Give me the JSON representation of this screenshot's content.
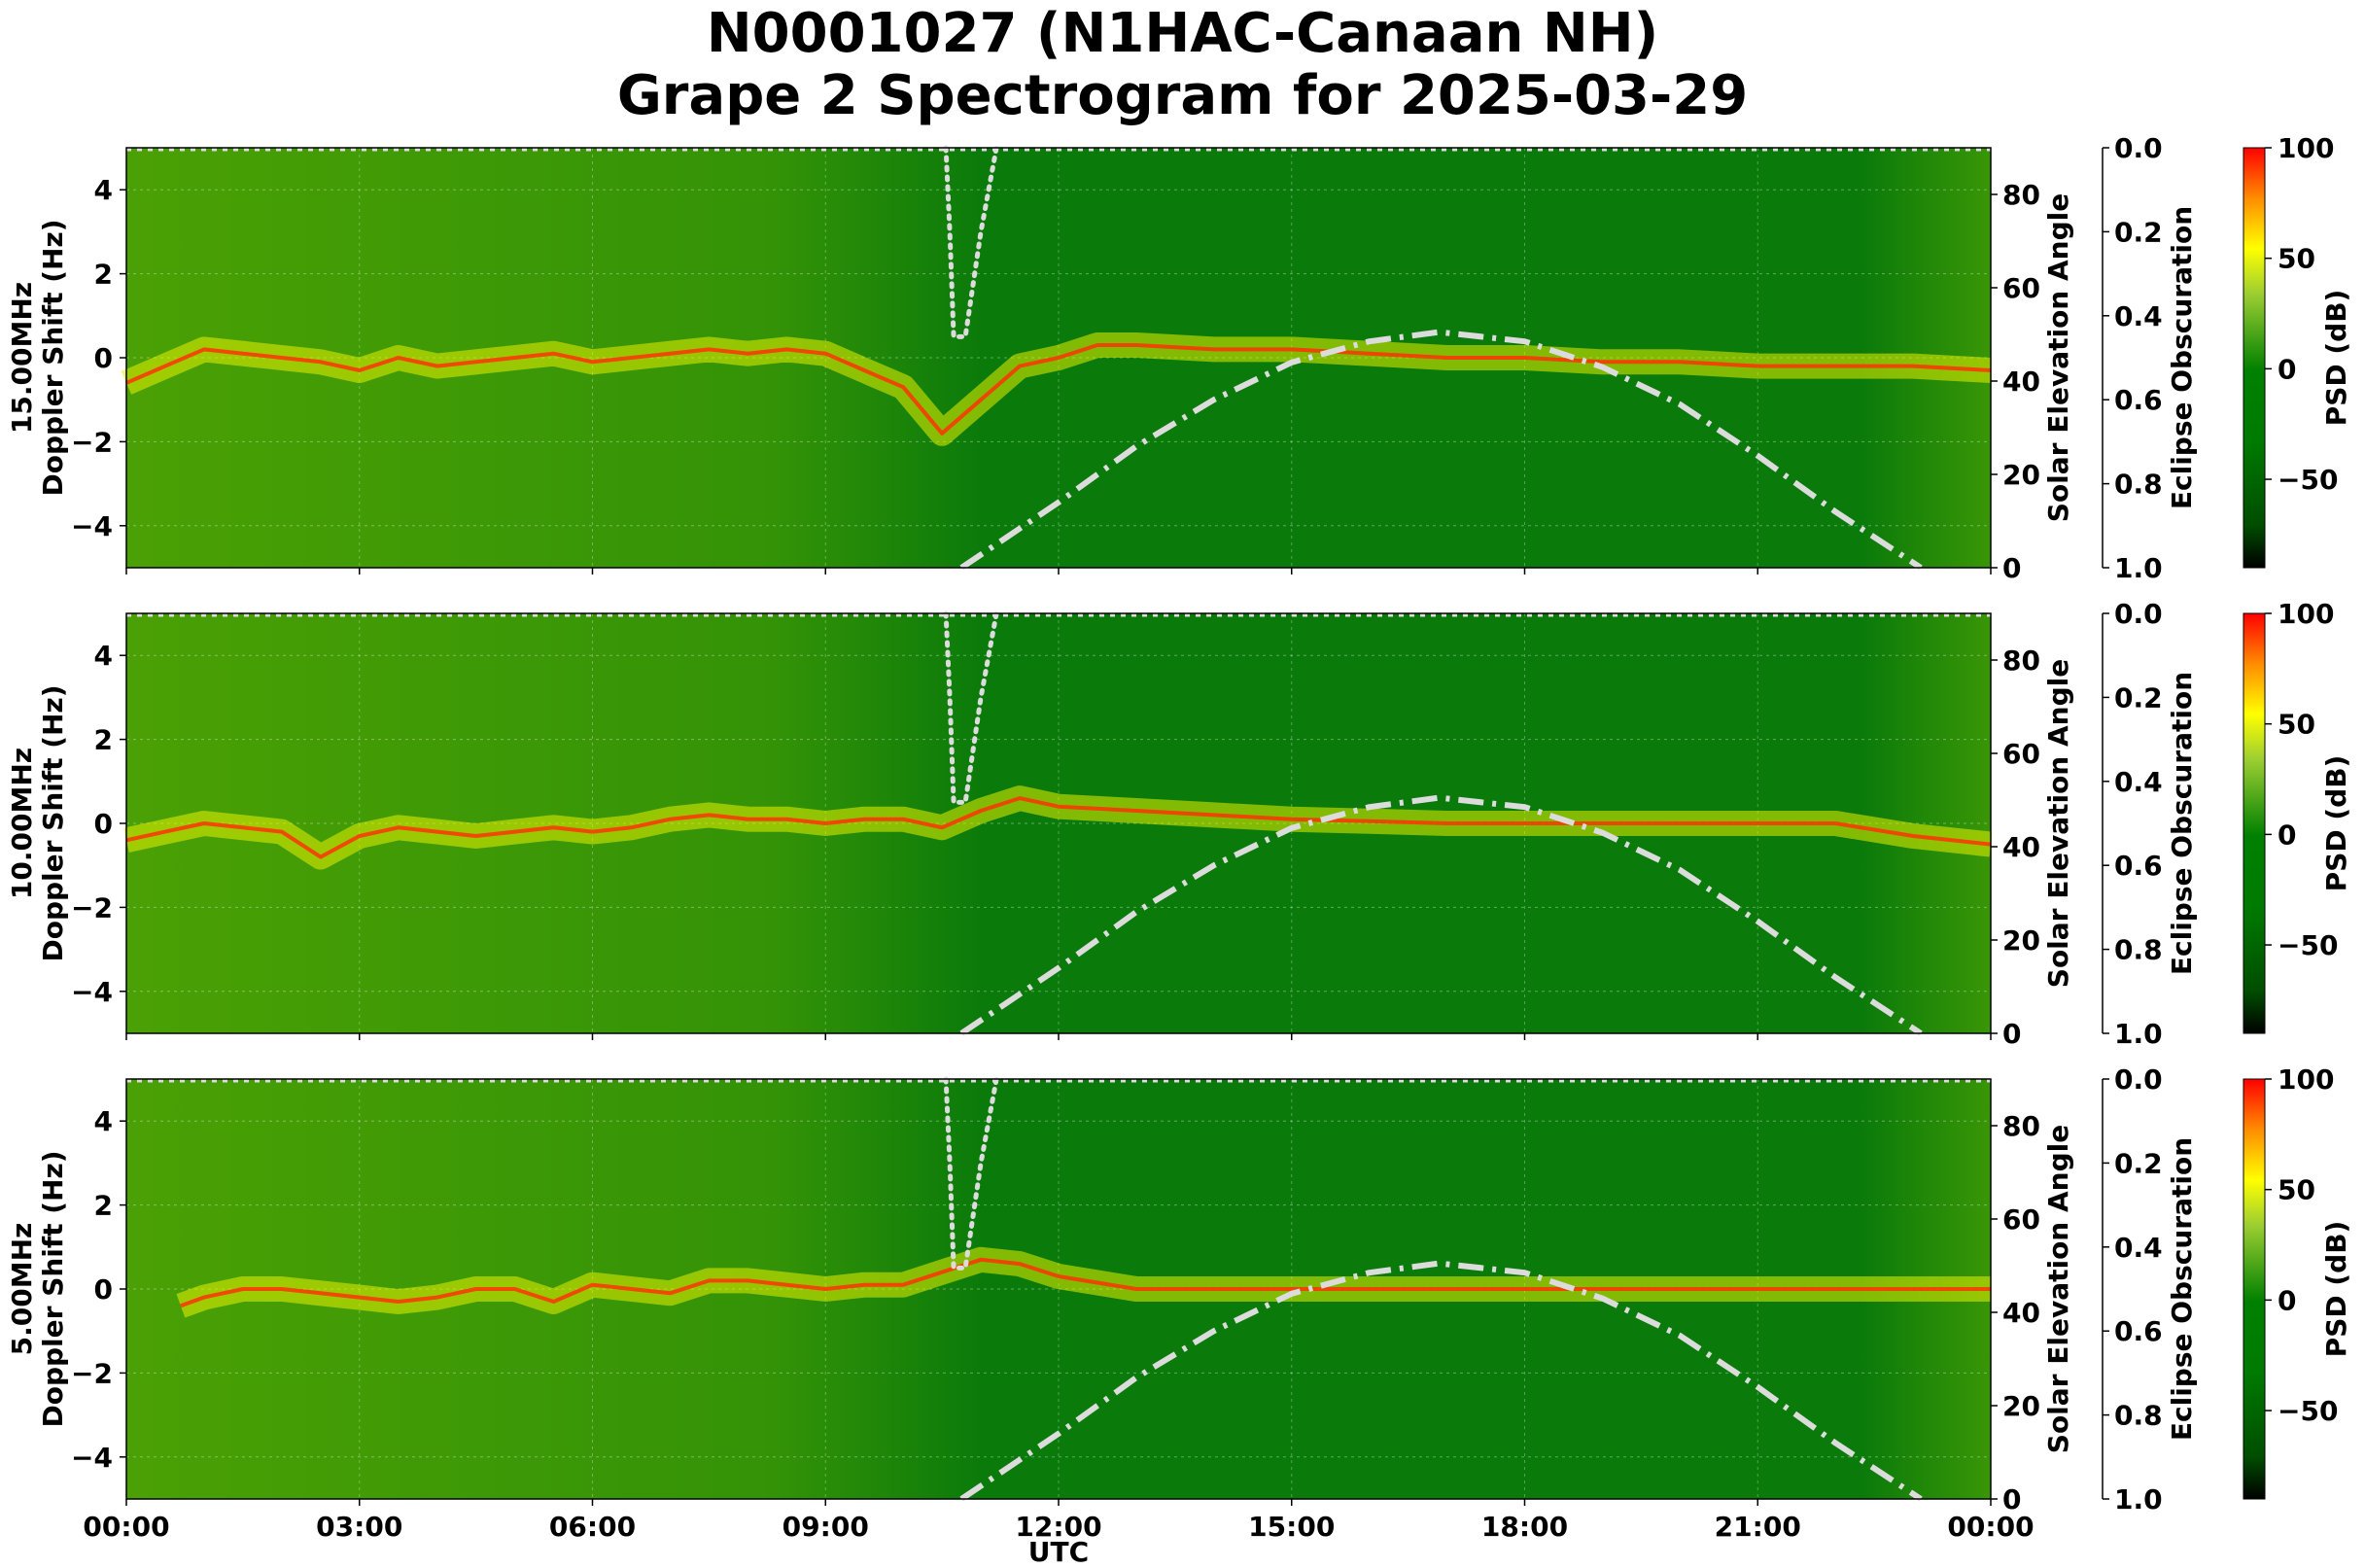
{
  "figure": {
    "title_line1": "N0001027 (N1HAC-Canaan NH)",
    "title_line2": "Grape 2 Spectrogram for 2025-03-29",
    "xlabel": "UTC"
  },
  "colors": {
    "spectrogram_background": "#0a7a0a",
    "trace_yellow": "#e8f000",
    "trace_red": "#ff3300",
    "overlay_line": "#dcdcdc",
    "colormap": [
      "#000000",
      "#006400",
      "#008000",
      "#9acd32",
      "#ffff00",
      "#ff0000"
    ]
  },
  "chart_data": [
    {
      "type": "heatmap",
      "ylabel": "15.00MHz\nDoppler Shift (Hz)",
      "right_ylabel": "Solar Elevation Angle",
      "right2_ylabel": "Eclipse Obscuration",
      "colorbar_label": "PSD (dB)",
      "xlim": [
        "00:00",
        "00:00"
      ],
      "x_ticks": [
        "00:00",
        "03:00",
        "06:00",
        "09:00",
        "12:00",
        "15:00",
        "18:00",
        "21:00",
        "00:00"
      ],
      "ylim": [
        -5,
        5
      ],
      "y_ticks": [
        4,
        2,
        0,
        -2,
        -4
      ],
      "solar_ylim": [
        0,
        90
      ],
      "solar_ticks": [
        80,
        60,
        40,
        20,
        0
      ],
      "eclipse_ylim": [
        0.0,
        1.0
      ],
      "eclipse_ticks": [
        "0.0",
        "0.2",
        "0.4",
        "0.6",
        "0.8",
        "1.0"
      ],
      "colorbar_ticks": [
        100,
        50,
        0,
        -50
      ],
      "colorbar_range": [
        -90,
        100
      ],
      "doppler_trace": [
        [
          0.0,
          -0.6
        ],
        [
          0.5,
          -0.2
        ],
        [
          1.0,
          0.2
        ],
        [
          1.5,
          0.1
        ],
        [
          2.0,
          0.0
        ],
        [
          2.5,
          -0.1
        ],
        [
          3.0,
          -0.3
        ],
        [
          3.5,
          0.0
        ],
        [
          4.0,
          -0.2
        ],
        [
          4.5,
          -0.1
        ],
        [
          5.0,
          0.0
        ],
        [
          5.5,
          0.1
        ],
        [
          6.0,
          -0.1
        ],
        [
          6.5,
          0.0
        ],
        [
          7.0,
          0.1
        ],
        [
          7.5,
          0.2
        ],
        [
          8.0,
          0.1
        ],
        [
          8.5,
          0.2
        ],
        [
          9.0,
          0.1
        ],
        [
          9.5,
          -0.3
        ],
        [
          10.0,
          -0.7
        ],
        [
          10.5,
          -1.8
        ],
        [
          11.0,
          -1.0
        ],
        [
          11.5,
          -0.2
        ],
        [
          12.0,
          0.0
        ],
        [
          12.5,
          0.3
        ],
        [
          13.0,
          0.3
        ],
        [
          14.0,
          0.2
        ],
        [
          15.0,
          0.2
        ],
        [
          16.0,
          0.1
        ],
        [
          17.0,
          0.0
        ],
        [
          18.0,
          0.0
        ],
        [
          19.0,
          -0.1
        ],
        [
          20.0,
          -0.1
        ],
        [
          21.0,
          -0.2
        ],
        [
          22.0,
          -0.2
        ],
        [
          23.0,
          -0.2
        ],
        [
          24.0,
          -0.3
        ]
      ],
      "solar_elevation": [
        [
          10.75,
          0
        ],
        [
          12.0,
          14
        ],
        [
          13.0,
          26
        ],
        [
          14.0,
          36
        ],
        [
          15.0,
          44
        ],
        [
          16.0,
          48.5
        ],
        [
          16.9,
          50.5
        ],
        [
          18.0,
          48.5
        ],
        [
          19.0,
          43
        ],
        [
          20.0,
          35
        ],
        [
          21.0,
          24
        ],
        [
          22.0,
          12
        ],
        [
          23.1,
          0
        ]
      ],
      "eclipse_obscuration_dotted": [
        [
          10.55,
          0.0
        ],
        [
          10.6,
          0.2
        ],
        [
          10.65,
          0.45
        ],
        [
          10.8,
          0.45
        ],
        [
          11.0,
          0.2
        ],
        [
          11.2,
          0.0
        ]
      ]
    },
    {
      "type": "heatmap",
      "ylabel": "10.00MHz\nDoppler Shift (Hz)",
      "right_ylabel": "Solar Elevation Angle",
      "right2_ylabel": "Eclipse Obscuration",
      "colorbar_label": "PSD (dB)",
      "xlim": [
        "00:00",
        "00:00"
      ],
      "x_ticks": [
        "00:00",
        "03:00",
        "06:00",
        "09:00",
        "12:00",
        "15:00",
        "18:00",
        "21:00",
        "00:00"
      ],
      "ylim": [
        -5,
        5
      ],
      "y_ticks": [
        4,
        2,
        0,
        -2,
        -4
      ],
      "solar_ylim": [
        0,
        90
      ],
      "solar_ticks": [
        80,
        60,
        40,
        20,
        0
      ],
      "eclipse_ylim": [
        0.0,
        1.0
      ],
      "eclipse_ticks": [
        "0.0",
        "0.2",
        "0.4",
        "0.6",
        "0.8",
        "1.0"
      ],
      "colorbar_ticks": [
        100,
        50,
        0,
        -50
      ],
      "colorbar_range": [
        -90,
        100
      ],
      "doppler_trace": [
        [
          0.0,
          -0.4
        ],
        [
          0.5,
          -0.2
        ],
        [
          1.0,
          0.0
        ],
        [
          1.5,
          -0.1
        ],
        [
          2.0,
          -0.2
        ],
        [
          2.5,
          -0.8
        ],
        [
          3.0,
          -0.3
        ],
        [
          3.5,
          -0.1
        ],
        [
          4.0,
          -0.2
        ],
        [
          4.5,
          -0.3
        ],
        [
          5.0,
          -0.2
        ],
        [
          5.5,
          -0.1
        ],
        [
          6.0,
          -0.2
        ],
        [
          6.5,
          -0.1
        ],
        [
          7.0,
          0.1
        ],
        [
          7.5,
          0.2
        ],
        [
          8.0,
          0.1
        ],
        [
          8.5,
          0.1
        ],
        [
          9.0,
          0.0
        ],
        [
          9.5,
          0.1
        ],
        [
          10.0,
          0.1
        ],
        [
          10.5,
          -0.1
        ],
        [
          11.0,
          0.3
        ],
        [
          11.5,
          0.6
        ],
        [
          12.0,
          0.4
        ],
        [
          13.0,
          0.3
        ],
        [
          14.0,
          0.2
        ],
        [
          15.0,
          0.1
        ],
        [
          16.0,
          0.05
        ],
        [
          17.0,
          0.0
        ],
        [
          18.0,
          0.0
        ],
        [
          20.0,
          0.0
        ],
        [
          22.0,
          0.0
        ],
        [
          23.0,
          -0.3
        ],
        [
          24.0,
          -0.5
        ]
      ],
      "solar_elevation": [
        [
          10.75,
          0
        ],
        [
          12.0,
          14
        ],
        [
          13.0,
          26
        ],
        [
          14.0,
          36
        ],
        [
          15.0,
          44
        ],
        [
          16.0,
          48.5
        ],
        [
          16.9,
          50.5
        ],
        [
          18.0,
          48.5
        ],
        [
          19.0,
          43
        ],
        [
          20.0,
          35
        ],
        [
          21.0,
          24
        ],
        [
          22.0,
          12
        ],
        [
          23.1,
          0
        ]
      ],
      "eclipse_obscuration_dotted": [
        [
          10.55,
          0.0
        ],
        [
          10.6,
          0.2
        ],
        [
          10.65,
          0.45
        ],
        [
          10.8,
          0.45
        ],
        [
          11.0,
          0.2
        ],
        [
          11.2,
          0.0
        ]
      ]
    },
    {
      "type": "heatmap",
      "ylabel": "5.00MHz\nDoppler Shift (Hz)",
      "right_ylabel": "Solar Elevation Angle",
      "right2_ylabel": "Eclipse Obscuration",
      "colorbar_label": "PSD (dB)",
      "xlim": [
        "00:00",
        "00:00"
      ],
      "x_ticks": [
        "00:00",
        "03:00",
        "06:00",
        "09:00",
        "12:00",
        "15:00",
        "18:00",
        "21:00",
        "00:00"
      ],
      "ylim": [
        -5,
        5
      ],
      "y_ticks": [
        4,
        2,
        0,
        -2,
        -4
      ],
      "solar_ylim": [
        0,
        90
      ],
      "solar_ticks": [
        80,
        60,
        40,
        20,
        0
      ],
      "eclipse_ylim": [
        0.0,
        1.0
      ],
      "eclipse_ticks": [
        "0.0",
        "0.2",
        "0.4",
        "0.6",
        "0.8",
        "1.0"
      ],
      "colorbar_ticks": [
        100,
        50,
        0,
        -50
      ],
      "colorbar_range": [
        -90,
        100
      ],
      "doppler_trace": [
        [
          0.7,
          -0.4
        ],
        [
          1.0,
          -0.2
        ],
        [
          1.5,
          0.0
        ],
        [
          2.0,
          0.0
        ],
        [
          2.5,
          -0.1
        ],
        [
          3.0,
          -0.2
        ],
        [
          3.5,
          -0.3
        ],
        [
          4.0,
          -0.2
        ],
        [
          4.5,
          0.0
        ],
        [
          5.0,
          0.0
        ],
        [
          5.5,
          -0.3
        ],
        [
          6.0,
          0.1
        ],
        [
          6.5,
          0.0
        ],
        [
          7.0,
          -0.1
        ],
        [
          7.5,
          0.2
        ],
        [
          8.0,
          0.2
        ],
        [
          8.5,
          0.1
        ],
        [
          9.0,
          0.0
        ],
        [
          9.5,
          0.1
        ],
        [
          10.0,
          0.1
        ],
        [
          10.5,
          0.4
        ],
        [
          11.0,
          0.7
        ],
        [
          11.5,
          0.6
        ],
        [
          12.0,
          0.3
        ],
        [
          13.0,
          0.0
        ],
        [
          15.0,
          0.0
        ],
        [
          18.0,
          0.0
        ],
        [
          21.0,
          0.0
        ],
        [
          23.0,
          0.0
        ],
        [
          24.0,
          0.0
        ]
      ],
      "solar_elevation": [
        [
          10.75,
          0
        ],
        [
          12.0,
          14
        ],
        [
          13.0,
          26
        ],
        [
          14.0,
          36
        ],
        [
          15.0,
          44
        ],
        [
          16.0,
          48.5
        ],
        [
          16.9,
          50.5
        ],
        [
          18.0,
          48.5
        ],
        [
          19.0,
          43
        ],
        [
          20.0,
          35
        ],
        [
          21.0,
          24
        ],
        [
          22.0,
          12
        ],
        [
          23.1,
          0
        ]
      ],
      "eclipse_obscuration_dotted": [
        [
          10.55,
          0.0
        ],
        [
          10.6,
          0.2
        ],
        [
          10.65,
          0.45
        ],
        [
          10.8,
          0.45
        ],
        [
          11.0,
          0.2
        ],
        [
          11.2,
          0.0
        ]
      ]
    }
  ]
}
